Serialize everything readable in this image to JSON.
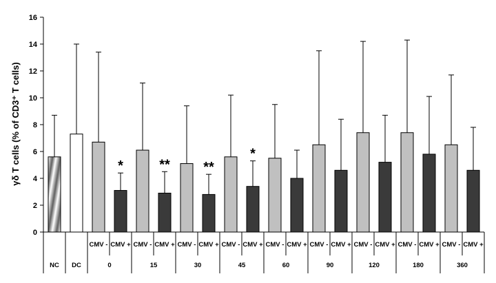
{
  "chart_data": {
    "type": "bar",
    "ylabel": "γδ T cells (% of CD3⁺ T cells)",
    "ylim": [
      0,
      16
    ],
    "yticks": [
      "0",
      "2",
      "4",
      "6",
      "8",
      "10",
      "12",
      "14",
      "16"
    ],
    "grid": false,
    "groups": [
      {
        "label": "NC",
        "bars": [
          {
            "sublabel": "",
            "value": 5.6,
            "error": 3.1,
            "fill": "hatched",
            "sig": ""
          }
        ]
      },
      {
        "label": "DC",
        "bars": [
          {
            "sublabel": "",
            "value": 7.3,
            "error": 6.7,
            "fill": "white",
            "sig": ""
          }
        ]
      },
      {
        "label": "0",
        "bars": [
          {
            "sublabel": "CMV -",
            "value": 6.7,
            "error": 6.7,
            "fill": "light-gray",
            "sig": ""
          },
          {
            "sublabel": "CMV +",
            "value": 3.1,
            "error": 1.3,
            "fill": "dark-gray",
            "sig": "*"
          }
        ]
      },
      {
        "label": "15",
        "bars": [
          {
            "sublabel": "CMV -",
            "value": 6.1,
            "error": 5.0,
            "fill": "light-gray",
            "sig": ""
          },
          {
            "sublabel": "CMV +",
            "value": 2.9,
            "error": 1.6,
            "fill": "dark-gray",
            "sig": "**"
          }
        ]
      },
      {
        "label": "30",
        "bars": [
          {
            "sublabel": "CMV -",
            "value": 5.1,
            "error": 4.3,
            "fill": "light-gray",
            "sig": ""
          },
          {
            "sublabel": "CMV +",
            "value": 2.8,
            "error": 1.5,
            "fill": "dark-gray",
            "sig": "**"
          }
        ]
      },
      {
        "label": "45",
        "bars": [
          {
            "sublabel": "CMV -",
            "value": 5.6,
            "error": 4.6,
            "fill": "light-gray",
            "sig": ""
          },
          {
            "sublabel": "CMV +",
            "value": 3.4,
            "error": 1.9,
            "fill": "dark-gray",
            "sig": "*"
          }
        ]
      },
      {
        "label": "60",
        "bars": [
          {
            "sublabel": "CMV -",
            "value": 5.5,
            "error": 4.0,
            "fill": "light-gray",
            "sig": ""
          },
          {
            "sublabel": "CMV +",
            "value": 4.0,
            "error": 2.1,
            "fill": "dark-gray",
            "sig": ""
          }
        ]
      },
      {
        "label": "90",
        "bars": [
          {
            "sublabel": "CMV -",
            "value": 6.5,
            "error": 7.0,
            "fill": "light-gray",
            "sig": ""
          },
          {
            "sublabel": "CMV +",
            "value": 4.6,
            "error": 3.8,
            "fill": "dark-gray",
            "sig": ""
          }
        ]
      },
      {
        "label": "120",
        "bars": [
          {
            "sublabel": "CMV -",
            "value": 7.4,
            "error": 6.8,
            "fill": "light-gray",
            "sig": ""
          },
          {
            "sublabel": "CMV +",
            "value": 5.2,
            "error": 3.5,
            "fill": "dark-gray",
            "sig": ""
          }
        ]
      },
      {
        "label": "180",
        "bars": [
          {
            "sublabel": "CMV -",
            "value": 7.4,
            "error": 6.9,
            "fill": "light-gray",
            "sig": ""
          },
          {
            "sublabel": "CMV +",
            "value": 5.8,
            "error": 4.3,
            "fill": "dark-gray",
            "sig": ""
          }
        ]
      },
      {
        "label": "360",
        "bars": [
          {
            "sublabel": "CMV -",
            "value": 6.5,
            "error": 5.2,
            "fill": "light-gray",
            "sig": ""
          },
          {
            "sublabel": "CMV +",
            "value": 4.6,
            "error": 3.2,
            "fill": "dark-gray",
            "sig": ""
          }
        ]
      }
    ],
    "colors": {
      "light-gray": "#c0c0c0",
      "dark-gray": "#3a3a3a",
      "white": "#ffffff",
      "axis": "#000000"
    }
  }
}
